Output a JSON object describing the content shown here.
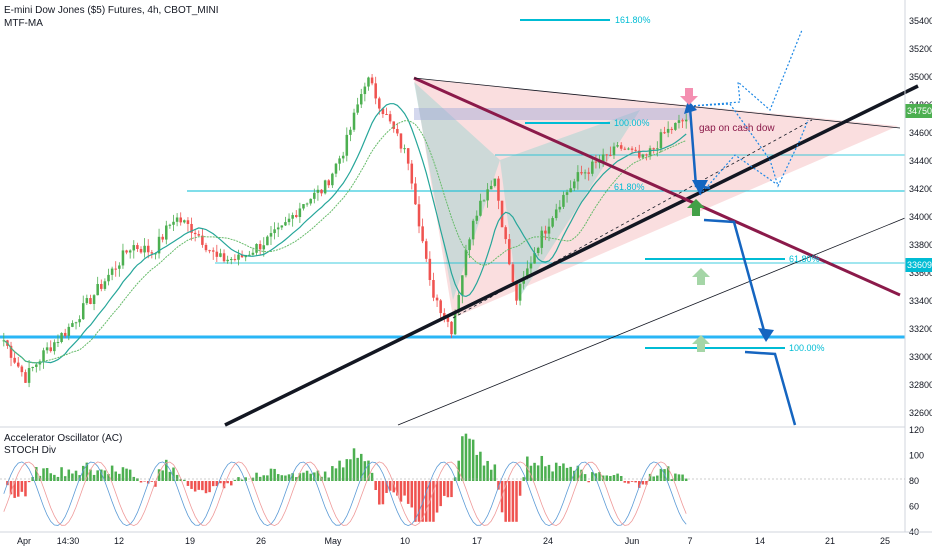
{
  "header": {
    "symbol_line": "E-mini Dow Jones ($5) Futures, 4h, CBOT_MINI",
    "indicator": "MTF-MA"
  },
  "subpane": {
    "title": "Accelerator Oscillator (AC)",
    "indicator2": "STOCH Div",
    "y_ticks": [
      "120",
      "100",
      "80",
      "60",
      "40"
    ]
  },
  "annotations": {
    "fib_top": "161.80%",
    "fib_100_upper": "100.00%",
    "fib_618_upper": "61.80%",
    "gap_text": "gap on cash  dow",
    "fib_618_lower": "61.80%",
    "fib_100_lower": "100.00%"
  },
  "price_badges": {
    "last": "34750",
    "level": "33609"
  },
  "colors": {
    "bull": "#26a69a",
    "bull_green": "#4caf50",
    "bear": "#ef5350",
    "level_line": "#00bcd4",
    "trend_red": "#8b1a4a",
    "trend_black": "#131722",
    "projection_blue": "#1565c0",
    "harmonic_pink": "#f4b6b8",
    "harmonic_teal": "#a8d5d1"
  },
  "chart_data": {
    "type": "candlestick",
    "title": "E-mini Dow Jones ($5) Futures, 4h, CBOT_MINI",
    "x_ticks": [
      "Apr",
      "14:30",
      "12",
      "19",
      "26",
      "May",
      "10",
      "17",
      "24",
      "Jun",
      "7",
      "14",
      "21",
      "25"
    ],
    "y_ticks": [
      35400,
      35200,
      35000,
      34800,
      34600,
      34400,
      34200,
      34000,
      33800,
      33600,
      33400,
      33200,
      33000,
      32800,
      32600
    ],
    "ylim": [
      32500,
      35550
    ],
    "approx_closes": [
      33120,
      32850,
      33050,
      33200,
      33400,
      33600,
      33800,
      33750,
      34000,
      33900,
      33700,
      33700,
      33800,
      33900,
      34100,
      34200,
      34500,
      35000,
      34700,
      34400,
      33500,
      33200,
      34000,
      34300,
      33400,
      33800,
      34100,
      34300,
      34400,
      34500,
      34400,
      34600,
      34700
    ],
    "levels": {
      "fib_161.8": 35530,
      "fib_100_upper": 34620,
      "fib_61.8_upper": 34170,
      "support_33609": 33609,
      "support_33100": 33100,
      "fib_100_lower": 32980,
      "last_price": 34750
    },
    "oscillator": {
      "name": "Accelerator Oscillator (AC)",
      "ylim": [
        40,
        120
      ],
      "y_ticks": [
        120,
        100,
        80,
        60,
        40
      ]
    }
  }
}
